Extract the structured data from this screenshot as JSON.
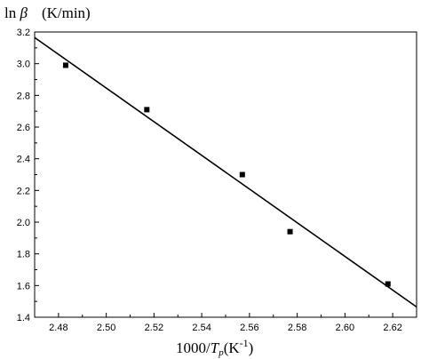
{
  "chart_data": {
    "type": "scatter",
    "title": "",
    "ylabel": {
      "prefix": "ln ",
      "symbol": "β",
      "unit": "(K/min)"
    },
    "xlabel": {
      "prefix": "1000/",
      "symbol": "T",
      "subscript": "p",
      "unit": "(K",
      "superscript": "-1",
      "close": ")"
    },
    "xlim": [
      2.47,
      2.63
    ],
    "ylim": [
      1.4,
      3.2
    ],
    "x_ticks": [
      "2.48",
      "2.50",
      "2.52",
      "2.54",
      "2.56",
      "2.58",
      "2.60",
      "2.62"
    ],
    "y_ticks": [
      "1.4",
      "1.6",
      "1.8",
      "2.0",
      "2.2",
      "2.4",
      "2.6",
      "2.8",
      "3.0",
      "3.2"
    ],
    "grid": false,
    "series": [
      {
        "points": [
          {
            "x": 2.483,
            "y": 2.99
          },
          {
            "x": 2.517,
            "y": 2.71
          },
          {
            "x": 2.557,
            "y": 2.3
          },
          {
            "x": 2.577,
            "y": 1.94
          },
          {
            "x": 2.618,
            "y": 1.61
          }
        ]
      }
    ],
    "fit_line": {
      "type": "linear",
      "from": {
        "x": 2.47,
        "y": 3.165
      },
      "to": {
        "x": 2.63,
        "y": 1.465
      }
    }
  }
}
